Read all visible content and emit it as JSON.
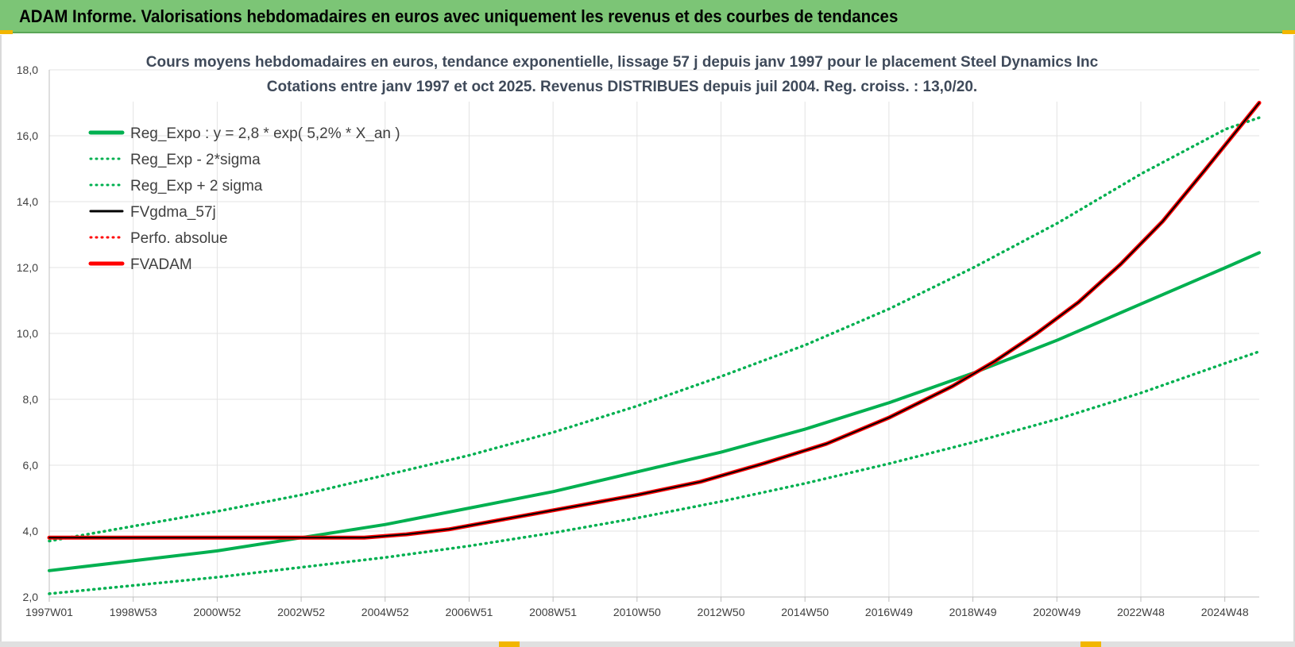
{
  "page": {
    "banner_title": "ADAM Informe. Valorisations hebdomadaires en euros avec uniquement les revenus et des courbes de tendances",
    "banner_color": "#7cc576"
  },
  "chart_data": {
    "type": "line",
    "title_line1": "Cours moyens hebdomadaires en euros, tendance exponentielle, lissage 57 j depuis janv 1997 pour le placement Steel Dynamics Inc",
    "title_line2": "Cotations entre janv 1997 et oct 2025. Revenus DISTRIBUES depuis juil 2004. Reg. croiss. : 13,0/20.",
    "x_tick_labels": [
      "1997W01",
      "1998W53",
      "2000W52",
      "2002W52",
      "2004W52",
      "2006W51",
      "2008W51",
      "2010W50",
      "2012W50",
      "2014W50",
      "2016W49",
      "2018W49",
      "2020W49",
      "2022W48",
      "2024W48"
    ],
    "x_range_years": [
      1997.0,
      2025.8
    ],
    "y_ticks": [
      "2,0",
      "4,0",
      "6,0",
      "8,0",
      "10,0",
      "12,0",
      "14,0",
      "16,0",
      "18,0"
    ],
    "ylim": [
      2,
      18
    ],
    "grid": true,
    "legend_position": "top-left",
    "series": [
      {
        "name": "Reg_Expo : y = 2,8 * exp( 5,2% *  X_an )",
        "color": "#00b050",
        "style": "solid",
        "x": [
          1997,
          1999,
          2001,
          2003,
          2005,
          2007,
          2009,
          2011,
          2013,
          2015,
          2017,
          2019,
          2021,
          2023,
          2025,
          2025.8
        ],
        "y": [
          2.8,
          3.1,
          3.4,
          3.8,
          4.2,
          4.7,
          5.2,
          5.8,
          6.4,
          7.1,
          7.9,
          8.8,
          9.8,
          10.9,
          12.0,
          12.45
        ]
      },
      {
        "name": "Reg_Exp - 2*sigma",
        "color": "#00b050",
        "style": "dotted",
        "x": [
          1997,
          1999,
          2001,
          2003,
          2005,
          2007,
          2009,
          2011,
          2013,
          2015,
          2017,
          2019,
          2021,
          2023,
          2025,
          2025.8
        ],
        "y": [
          2.1,
          2.35,
          2.6,
          2.9,
          3.2,
          3.55,
          3.95,
          4.4,
          4.9,
          5.45,
          6.05,
          6.7,
          7.4,
          8.2,
          9.1,
          9.45
        ]
      },
      {
        "name": "Reg_Exp + 2 sigma",
        "color": "#00b050",
        "style": "dotted",
        "x": [
          1997,
          1999,
          2001,
          2003,
          2005,
          2007,
          2009,
          2011,
          2013,
          2015,
          2017,
          2019,
          2021,
          2023,
          2025,
          2025.8
        ],
        "y": [
          3.7,
          4.15,
          4.6,
          5.1,
          5.7,
          6.3,
          7.0,
          7.8,
          8.7,
          9.65,
          10.75,
          12.0,
          13.35,
          14.85,
          16.2,
          16.55
        ]
      },
      {
        "name": "FVgdma_57j",
        "color": "#000000",
        "style": "solid",
        "x": [
          1997,
          1999,
          2001,
          2003,
          2004.5,
          2005.5,
          2006.5,
          2008,
          2009.5,
          2011,
          2012.5,
          2014,
          2015.5,
          2017,
          2018.5,
          2019.5,
          2020.5,
          2021.5,
          2022.5,
          2023.5,
          2024.5,
          2025.8
        ],
        "y": [
          3.8,
          3.8,
          3.8,
          3.8,
          3.8,
          3.9,
          4.05,
          4.4,
          4.75,
          5.1,
          5.5,
          6.05,
          6.65,
          7.45,
          8.4,
          9.15,
          10.0,
          10.95,
          12.1,
          13.4,
          14.95,
          17.0
        ]
      },
      {
        "name": "Perfo. absolue",
        "color": "#ff0000",
        "style": "dotted",
        "x": [
          1997,
          1999,
          2001,
          2003,
          2004.5,
          2005.5,
          2006.5,
          2008,
          2009.5,
          2011,
          2012.5,
          2014,
          2015.5,
          2017,
          2018.5,
          2019.5,
          2020.5,
          2021.5,
          2022.5,
          2023.5,
          2024.5,
          2025.8
        ],
        "y": [
          3.8,
          3.8,
          3.8,
          3.8,
          3.8,
          3.9,
          4.05,
          4.4,
          4.75,
          5.1,
          5.5,
          6.05,
          6.65,
          7.45,
          8.4,
          9.15,
          10.0,
          10.95,
          12.1,
          13.4,
          14.95,
          17.0
        ]
      },
      {
        "name": "FVADAM",
        "color": "#ff0000",
        "style": "solid",
        "x": [
          1997,
          1999,
          2001,
          2003,
          2004.5,
          2005.5,
          2006.5,
          2008,
          2009.5,
          2011,
          2012.5,
          2014,
          2015.5,
          2017,
          2018.5,
          2019.5,
          2020.5,
          2021.5,
          2022.5,
          2023.5,
          2024.5,
          2025.8
        ],
        "y": [
          3.8,
          3.8,
          3.8,
          3.8,
          3.8,
          3.9,
          4.05,
          4.4,
          4.75,
          5.1,
          5.5,
          6.05,
          6.65,
          7.45,
          8.4,
          9.15,
          10.0,
          10.95,
          12.1,
          13.4,
          14.95,
          17.0
        ]
      }
    ]
  }
}
